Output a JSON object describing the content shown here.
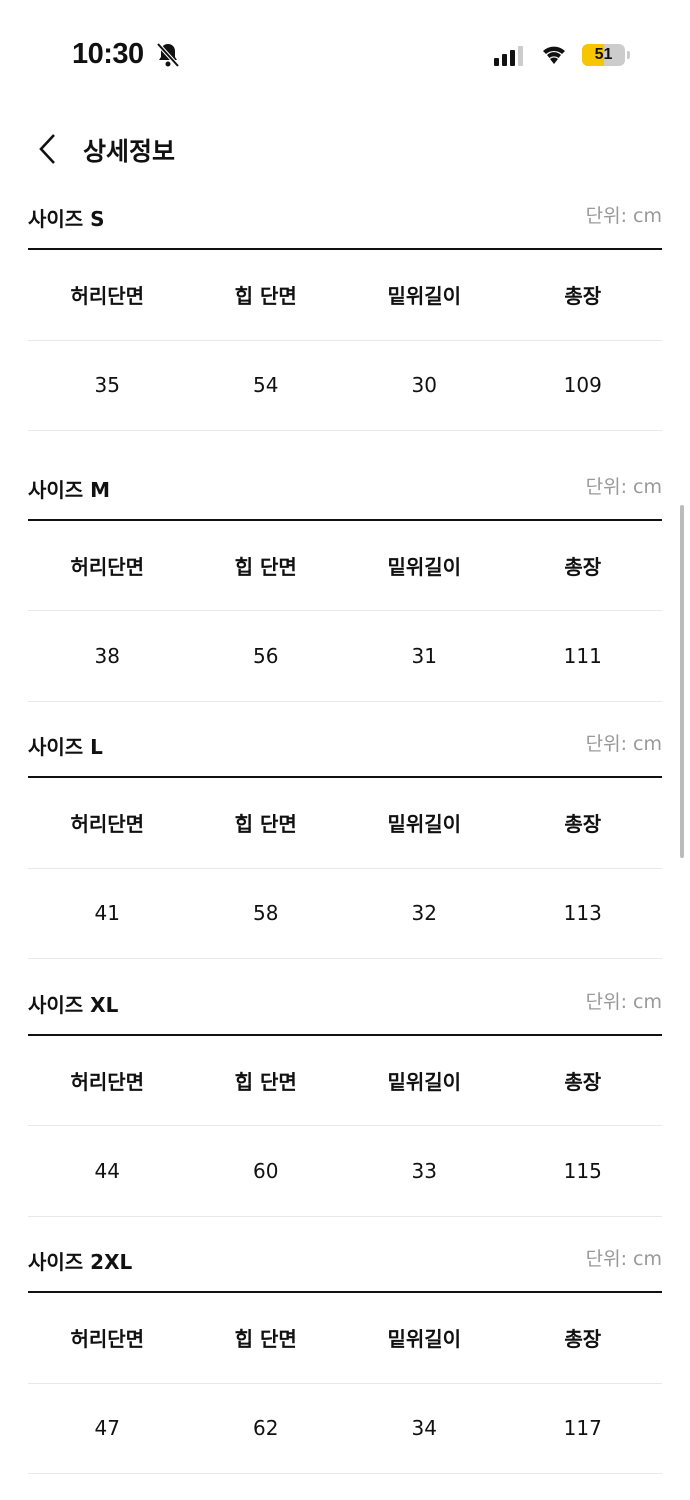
{
  "status_bar": {
    "time": "10:30",
    "battery": "51",
    "battery_level": 0.51,
    "icons": [
      "bell-slash-icon",
      "signal-icon",
      "wifi-icon",
      "battery-icon"
    ],
    "battery_color": "#f7c600"
  },
  "header": {
    "title": "상세정보",
    "back_icon": "chevron-left-icon"
  },
  "columns": [
    "허리단면",
    "힙 단면",
    "밑위길이",
    "총장"
  ],
  "sections": [
    {
      "title": "사이즈 S",
      "unit": "단위: cm",
      "values": [
        "35",
        "54",
        "30",
        "109"
      ]
    },
    {
      "title": "사이즈 M",
      "unit": "단위: cm",
      "values": [
        "38",
        "56",
        "31",
        "111"
      ]
    },
    {
      "title": "사이즈 L",
      "unit": "단위: cm",
      "values": [
        "41",
        "58",
        "32",
        "113"
      ]
    },
    {
      "title": "사이즈 XL",
      "unit": "단위: cm",
      "values": [
        "44",
        "60",
        "33",
        "115"
      ]
    },
    {
      "title": "사이즈 2XL",
      "unit": "단위: cm",
      "values": [
        "47",
        "62",
        "34",
        "117"
      ]
    }
  ]
}
